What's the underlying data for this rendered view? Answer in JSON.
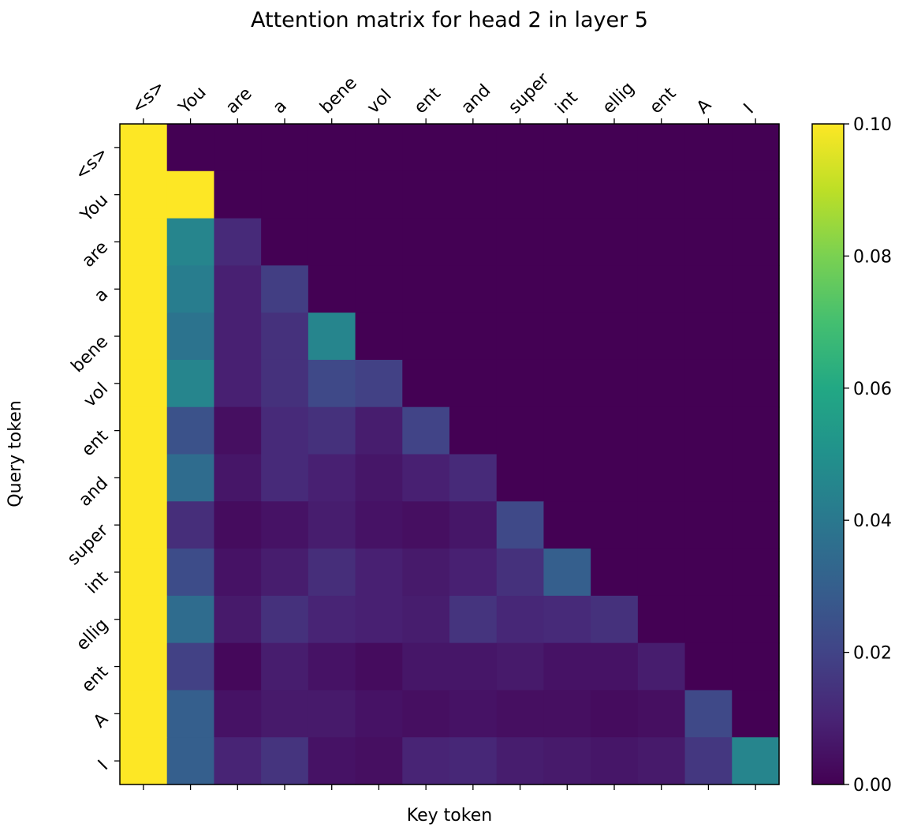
{
  "chart_data": {
    "type": "heatmap",
    "title": "Attention matrix for head 2 in layer 5",
    "xlabel": "Key token",
    "ylabel": "Query token",
    "x_tokens": [
      "<s>",
      "You",
      "are",
      "a",
      "bene",
      "vol",
      "ent",
      "and",
      "super",
      "int",
      "ellig",
      "ent",
      "A",
      "I"
    ],
    "y_tokens": [
      "<s>",
      "You",
      "are",
      "a",
      "bene",
      "vol",
      "ent",
      "and",
      "super",
      "int",
      "ellig",
      "ent",
      "A",
      "I"
    ],
    "colormap": "viridis",
    "color_range": [
      0.0,
      0.1
    ],
    "colorbar_ticks": [
      "0.00",
      "0.02",
      "0.04",
      "0.06",
      "0.08",
      "0.10"
    ],
    "colorbar_tick_values": [
      0,
      0.02,
      0.04,
      0.06,
      0.08,
      0.1
    ],
    "values": [
      [
        1.0,
        0,
        0,
        0,
        0,
        0,
        0,
        0,
        0,
        0,
        0,
        0,
        0,
        0
      ],
      [
        0.6,
        0.4,
        0,
        0,
        0,
        0,
        0,
        0,
        0,
        0,
        0,
        0,
        0,
        0
      ],
      [
        0.9,
        0.045,
        0.012,
        0,
        0,
        0,
        0,
        0,
        0,
        0,
        0,
        0,
        0,
        0
      ],
      [
        0.9,
        0.042,
        0.009,
        0.018,
        0,
        0,
        0,
        0,
        0,
        0,
        0,
        0,
        0,
        0
      ],
      [
        0.9,
        0.038,
        0.009,
        0.014,
        0.045,
        0,
        0,
        0,
        0,
        0,
        0,
        0,
        0,
        0
      ],
      [
        0.9,
        0.045,
        0.009,
        0.014,
        0.022,
        0.019,
        0,
        0,
        0,
        0,
        0,
        0,
        0,
        0
      ],
      [
        0.9,
        0.025,
        0.004,
        0.012,
        0.014,
        0.008,
        0.02,
        0,
        0,
        0,
        0,
        0,
        0,
        0
      ],
      [
        0.9,
        0.035,
        0.006,
        0.012,
        0.009,
        0.006,
        0.009,
        0.012,
        0,
        0,
        0,
        0,
        0,
        0
      ],
      [
        0.9,
        0.013,
        0.003,
        0.005,
        0.008,
        0.005,
        0.004,
        0.006,
        0.022,
        0,
        0,
        0,
        0,
        0
      ],
      [
        0.9,
        0.023,
        0.005,
        0.008,
        0.013,
        0.009,
        0.007,
        0.009,
        0.014,
        0.03,
        0,
        0,
        0,
        0
      ],
      [
        0.9,
        0.035,
        0.007,
        0.014,
        0.01,
        0.009,
        0.008,
        0.015,
        0.011,
        0.012,
        0.014,
        0,
        0,
        0
      ],
      [
        0.9,
        0.019,
        0.002,
        0.008,
        0.005,
        0.003,
        0.006,
        0.006,
        0.007,
        0.005,
        0.005,
        0.008,
        0,
        0
      ],
      [
        0.9,
        0.03,
        0.005,
        0.007,
        0.007,
        0.005,
        0.004,
        0.005,
        0.004,
        0.004,
        0.003,
        0.004,
        0.022,
        0
      ],
      [
        0.9,
        0.03,
        0.01,
        0.015,
        0.005,
        0.004,
        0.01,
        0.011,
        0.008,
        0.007,
        0.006,
        0.007,
        0.016,
        0.045
      ]
    ]
  }
}
